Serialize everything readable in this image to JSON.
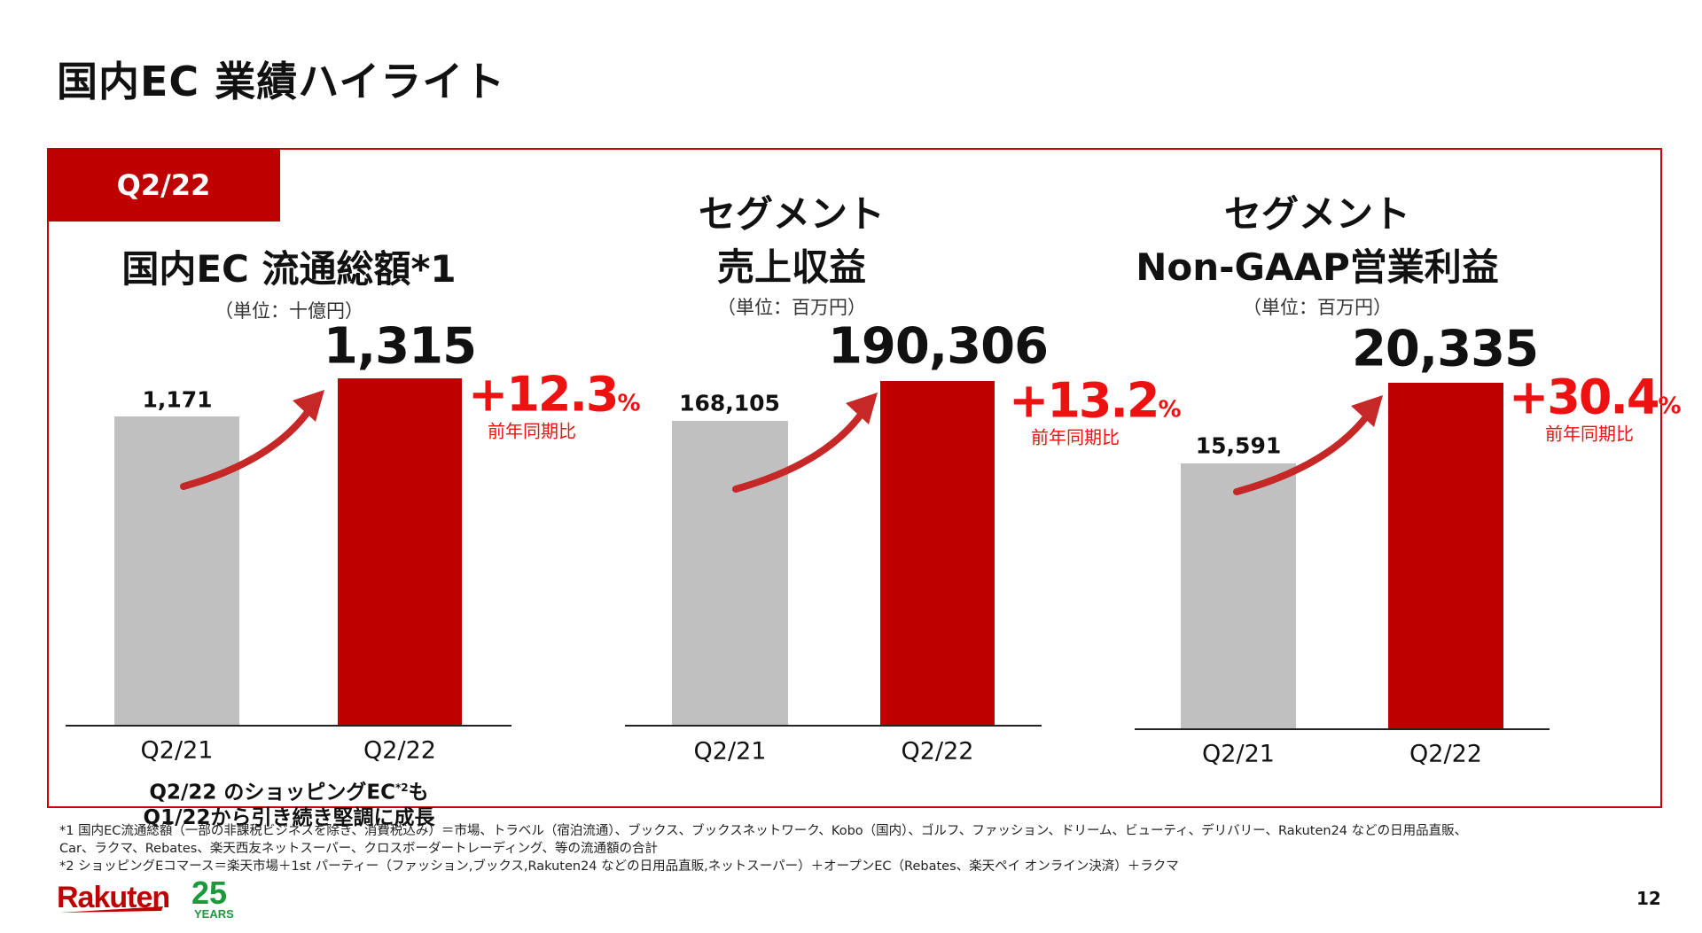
{
  "page_title": "国内EC 業績ハイライト",
  "period_tab": "Q2/22",
  "colors": {
    "accent_red": "#bf0000",
    "growth_red": "#ee1111",
    "prior_gray": "#c0c0c0"
  },
  "chart_data": [
    {
      "type": "bar",
      "title": "国内EC 流通総額*1",
      "unit": "（単位：十億円）",
      "categories": [
        "Q2/21",
        "Q2/22"
      ],
      "values": [
        1171,
        1315
      ],
      "value_labels": [
        "1,171",
        "1,315"
      ],
      "growth": "+12.3",
      "growth_unit": "%",
      "growth_label": "前年同期比"
    },
    {
      "type": "bar",
      "title_lines": [
        "セグメント",
        "売上収益"
      ],
      "unit": "（単位：百万円）",
      "categories": [
        "Q2/21",
        "Q2/22"
      ],
      "values": [
        168105,
        190306
      ],
      "value_labels": [
        "168,105",
        "190,306"
      ],
      "growth": "+13.2",
      "growth_unit": "%",
      "growth_label": "前年同期比"
    },
    {
      "type": "bar",
      "title_lines": [
        "セグメント",
        "Non-GAAP営業利益"
      ],
      "unit": "（単位：百万円）",
      "categories": [
        "Q2/21",
        "Q2/22"
      ],
      "values": [
        15591,
        20335
      ],
      "value_labels": [
        "15,591",
        "20,335"
      ],
      "growth": "+30.4",
      "growth_unit": "%",
      "growth_label": "前年同期比"
    }
  ],
  "caption": {
    "line1_pre": "Q2/22 のショッピングEC",
    "line1_sup": "*2",
    "line1_post": "も",
    "line2": "Q1/22から引き続き堅調に成長"
  },
  "footnotes": [
    "*1 国内EC流通総額（一部の非課税ビジネスを除き、消費税込み）＝市場、トラベル（宿泊流通）、ブックス、ブックスネットワーク、Kobo（国内）、ゴルフ、ファッション、ドリーム、ビューティ、デリバリー、Rakuten24 などの日用品直販、",
    "Car、ラクマ、Rebates、楽天西友ネットスーパー、クロスボーダートレーディング、等の流通額の合計",
    "*2 ショッピングEコマース＝楽天市場＋1st パーティー（ファッション,ブックス,Rakuten24 などの日用品直販,ネットスーパー）＋オープンEC（Rebates、楽天ペイ オンライン決済）＋ラクマ"
  ],
  "logo": {
    "brand": "Rakuten",
    "anniversary": "25",
    "anniversary_sub": "YEARS"
  },
  "page_number": "12"
}
